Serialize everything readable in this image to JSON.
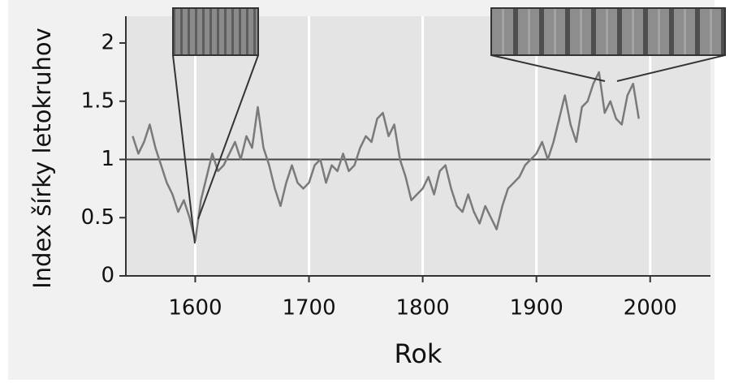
{
  "chart_data": {
    "type": "line",
    "x_label": "Rok",
    "y_label": "Index šírky letokruhov",
    "x": [
      1545,
      1550,
      1555,
      1560,
      1565,
      1570,
      1575,
      1580,
      1585,
      1590,
      1595,
      1600,
      1605,
      1610,
      1615,
      1620,
      1625,
      1630,
      1635,
      1640,
      1645,
      1650,
      1655,
      1660,
      1665,
      1670,
      1675,
      1680,
      1685,
      1690,
      1695,
      1700,
      1705,
      1710,
      1715,
      1720,
      1725,
      1730,
      1735,
      1740,
      1745,
      1750,
      1755,
      1760,
      1765,
      1770,
      1775,
      1780,
      1785,
      1790,
      1795,
      1800,
      1805,
      1810,
      1815,
      1820,
      1825,
      1830,
      1835,
      1840,
      1845,
      1850,
      1855,
      1860,
      1865,
      1870,
      1875,
      1880,
      1885,
      1890,
      1895,
      1900,
      1905,
      1910,
      1915,
      1920,
      1925,
      1930,
      1935,
      1940,
      1945,
      1950,
      1955,
      1960,
      1965,
      1970,
      1975,
      1980,
      1985,
      1990
    ],
    "values": [
      1.2,
      1.05,
      1.15,
      1.3,
      1.1,
      0.95,
      0.8,
      0.7,
      0.55,
      0.65,
      0.5,
      0.3,
      0.65,
      0.85,
      1.05,
      0.9,
      0.95,
      1.05,
      1.15,
      1.0,
      1.2,
      1.1,
      1.45,
      1.1,
      0.95,
      0.75,
      0.6,
      0.8,
      0.95,
      0.8,
      0.75,
      0.8,
      0.95,
      1.0,
      0.8,
      0.95,
      0.9,
      1.05,
      0.9,
      0.95,
      1.1,
      1.2,
      1.15,
      1.35,
      1.4,
      1.2,
      1.3,
      1.0,
      0.85,
      0.65,
      0.7,
      0.75,
      0.85,
      0.7,
      0.9,
      0.95,
      0.75,
      0.6,
      0.55,
      0.7,
      0.55,
      0.45,
      0.6,
      0.5,
      0.4,
      0.6,
      0.75,
      0.8,
      0.85,
      0.95,
      1.0,
      1.05,
      1.15,
      1.0,
      1.15,
      1.35,
      1.55,
      1.3,
      1.15,
      1.45,
      1.5,
      1.65,
      1.75,
      1.4,
      1.5,
      1.35,
      1.3,
      1.55,
      1.65,
      1.35
    ],
    "color": "#7a7a7a",
    "reference_line": 1,
    "xlim": [
      1539,
      2053
    ],
    "xticks": [
      1600,
      1700,
      1800,
      1900,
      2000
    ],
    "ylim": [
      0,
      2.23
    ],
    "yticks": [
      0,
      0.5,
      1,
      1.5,
      2
    ],
    "grid": true
  }
}
